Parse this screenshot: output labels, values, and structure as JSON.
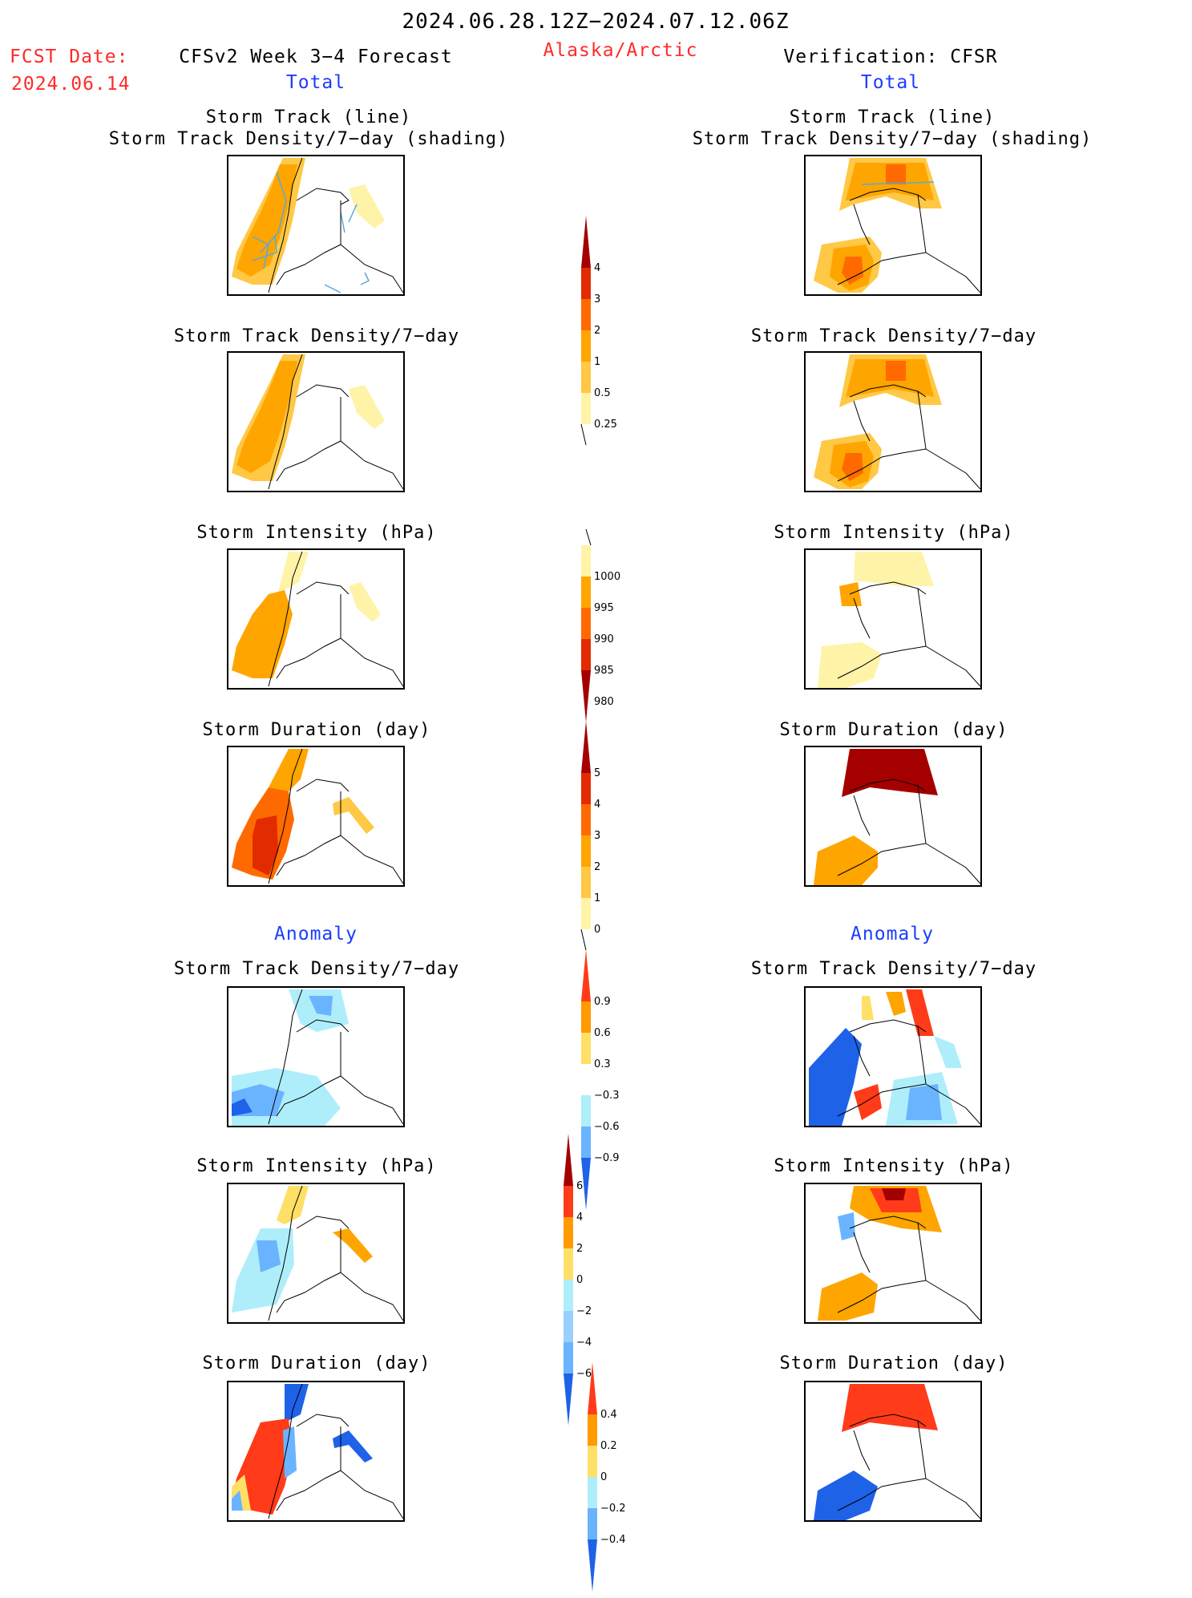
{
  "header": {
    "period": "2024.06.28.12Z−2024.07.12.06Z",
    "region": "Alaska/Arctic",
    "fcst_label": "FCST Date:",
    "fcst_date": "2024.06.14",
    "left_title": "CFSv2 Week 3−4 Forecast",
    "right_title": "Verification: CFSR",
    "left_sub": "Total",
    "right_sub": "Total",
    "anomaly_left": "Anomaly",
    "anomaly_right": "Anomaly"
  },
  "panel_titles": {
    "track_line": "Storm Track (line)",
    "track_shading": "Storm Track Density/7−day (shading)",
    "density": "Storm Track Density/7−day",
    "intensity": "Storm Intensity (hPa)",
    "duration": "Storm Duration (day)"
  },
  "colorbars": {
    "density": {
      "ticks": [
        "4",
        "3",
        "2",
        "1",
        "0.5",
        "0.25"
      ],
      "colors": [
        "#a50000",
        "#e22b00",
        "#ff6a00",
        "#ffa500",
        "#ffc845",
        "#fff3a8"
      ]
    },
    "intensity": {
      "ticks": [
        "1000",
        "995",
        "990",
        "985",
        "980"
      ],
      "colors": [
        "#fff3a8",
        "#ffa500",
        "#ff6a00",
        "#e22b00",
        "#a50000"
      ]
    },
    "duration": {
      "ticks": [
        "5",
        "4",
        "3",
        "2",
        "1",
        "0"
      ],
      "colors": [
        "#a50000",
        "#e22b00",
        "#ff6a00",
        "#ffa500",
        "#ffc845",
        "#fff3a8"
      ]
    },
    "anom_density": {
      "ticks": [
        "0.9",
        "0.6",
        "0.3",
        "−0.3",
        "−0.6",
        "−0.9"
      ],
      "colors": [
        "#ff3b1a",
        "#ff9a00",
        "#ffe066",
        "#ffffff",
        "#aeeefa",
        "#6ab4ff",
        "#1e62e8"
      ]
    },
    "anom_intensity": {
      "ticks": [
        "6",
        "4",
        "2",
        "0",
        "−2",
        "−4",
        "−6"
      ],
      "colors": [
        "#a50000",
        "#ff3b1a",
        "#ff9a00",
        "#ffe066",
        "#aeeefa",
        "#9ad0ff",
        "#6ab4ff",
        "#1e62e8"
      ]
    },
    "anom_duration": {
      "ticks": [
        "0.4",
        "0.2",
        "0",
        "−0.2",
        "−0.4"
      ],
      "colors": [
        "#ff3b1a",
        "#ff9a00",
        "#ffe066",
        "#aeeefa",
        "#6ab4ff",
        "#1e62e8"
      ]
    }
  }
}
